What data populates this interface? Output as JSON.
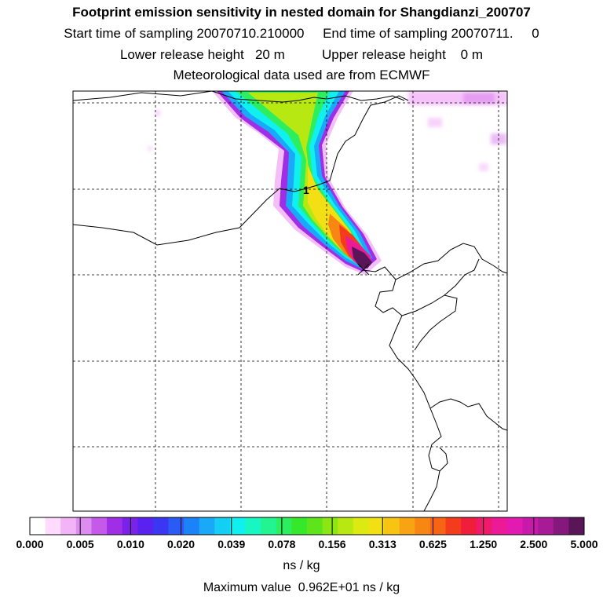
{
  "title": "Footprint emission sensitivity in nested domain for Shangdianzi_200707",
  "line2": "Start time of sampling 20070710.210000     End time of sampling 20070711.     0",
  "line3": "Lower release height   20 m          Upper release height    0 m",
  "line4": "Meteorological data used are from ECMWF",
  "release_marker_label": "1",
  "chart_data": {
    "type": "heatmap",
    "colorbar": {
      "tick_labels": [
        "0.000",
        "0.005",
        "0.010",
        "0.020",
        "0.039",
        "0.078",
        "0.156",
        "0.313",
        "0.625",
        "1.250",
        "2.500",
        "5.000"
      ],
      "colors": [
        "#ffffff",
        "#ffdcff",
        "#f2b4f7",
        "#dd8df0",
        "#c55aea",
        "#a02ee6",
        "#7a22e8",
        "#5a22f0",
        "#3a36f2",
        "#2a5cf5",
        "#1c82f7",
        "#1aa8f8",
        "#14cef4",
        "#10f0ee",
        "#18f6c2",
        "#22f492",
        "#2cee5e",
        "#36e82a",
        "#5ee41a",
        "#8ce614",
        "#b8e812",
        "#dcea12",
        "#f2e014",
        "#f8c414",
        "#f8a412",
        "#f88612",
        "#f66414",
        "#f43c1c",
        "#f01e3a",
        "#f01a6c",
        "#ec1a96",
        "#e21ab2",
        "#c81aaa",
        "#a81a96",
        "#84187c",
        "#5a1458"
      ],
      "units": "ns / kg"
    },
    "max_value_text": "Maximum value  0.962E+01 ns / kg",
    "grid": true
  }
}
